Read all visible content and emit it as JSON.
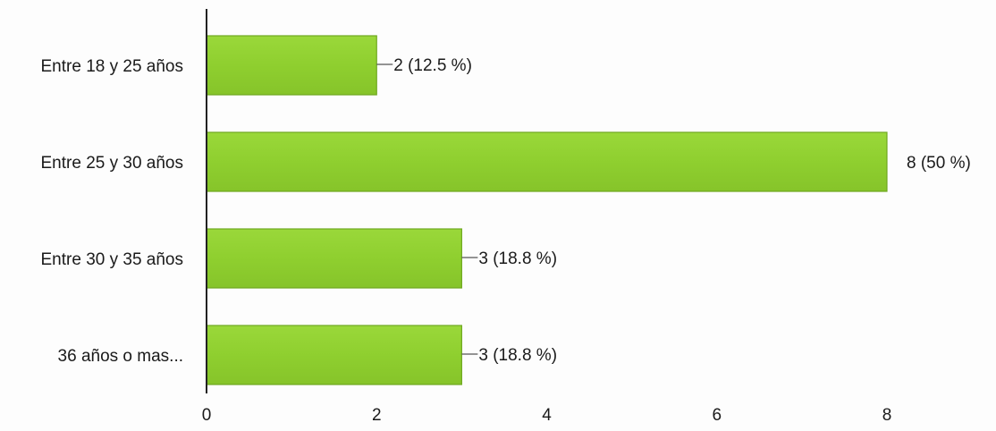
{
  "chart_data": {
    "type": "bar",
    "orientation": "horizontal",
    "categories": [
      "Entre 18 y 25 años",
      "Entre 25 y 30 años",
      "Entre 30 y 35 años",
      "36 años o mas..."
    ],
    "values": [
      2,
      8,
      3,
      3
    ],
    "data_labels": [
      "2 (12.5 %)",
      "8 (50 %)",
      "3 (18.8 %)",
      "3 (18.8 %)"
    ],
    "xlim": [
      0,
      8
    ],
    "x_ticks": [
      0,
      2,
      4,
      6,
      8
    ],
    "x_tick_labels": [
      "0",
      "2",
      "4",
      "6",
      "8"
    ],
    "grid": false,
    "colors": {
      "bar": "#8fcf2f",
      "bar_edge": "#6fa820",
      "axis": "#222222",
      "leader": "#555555"
    }
  }
}
